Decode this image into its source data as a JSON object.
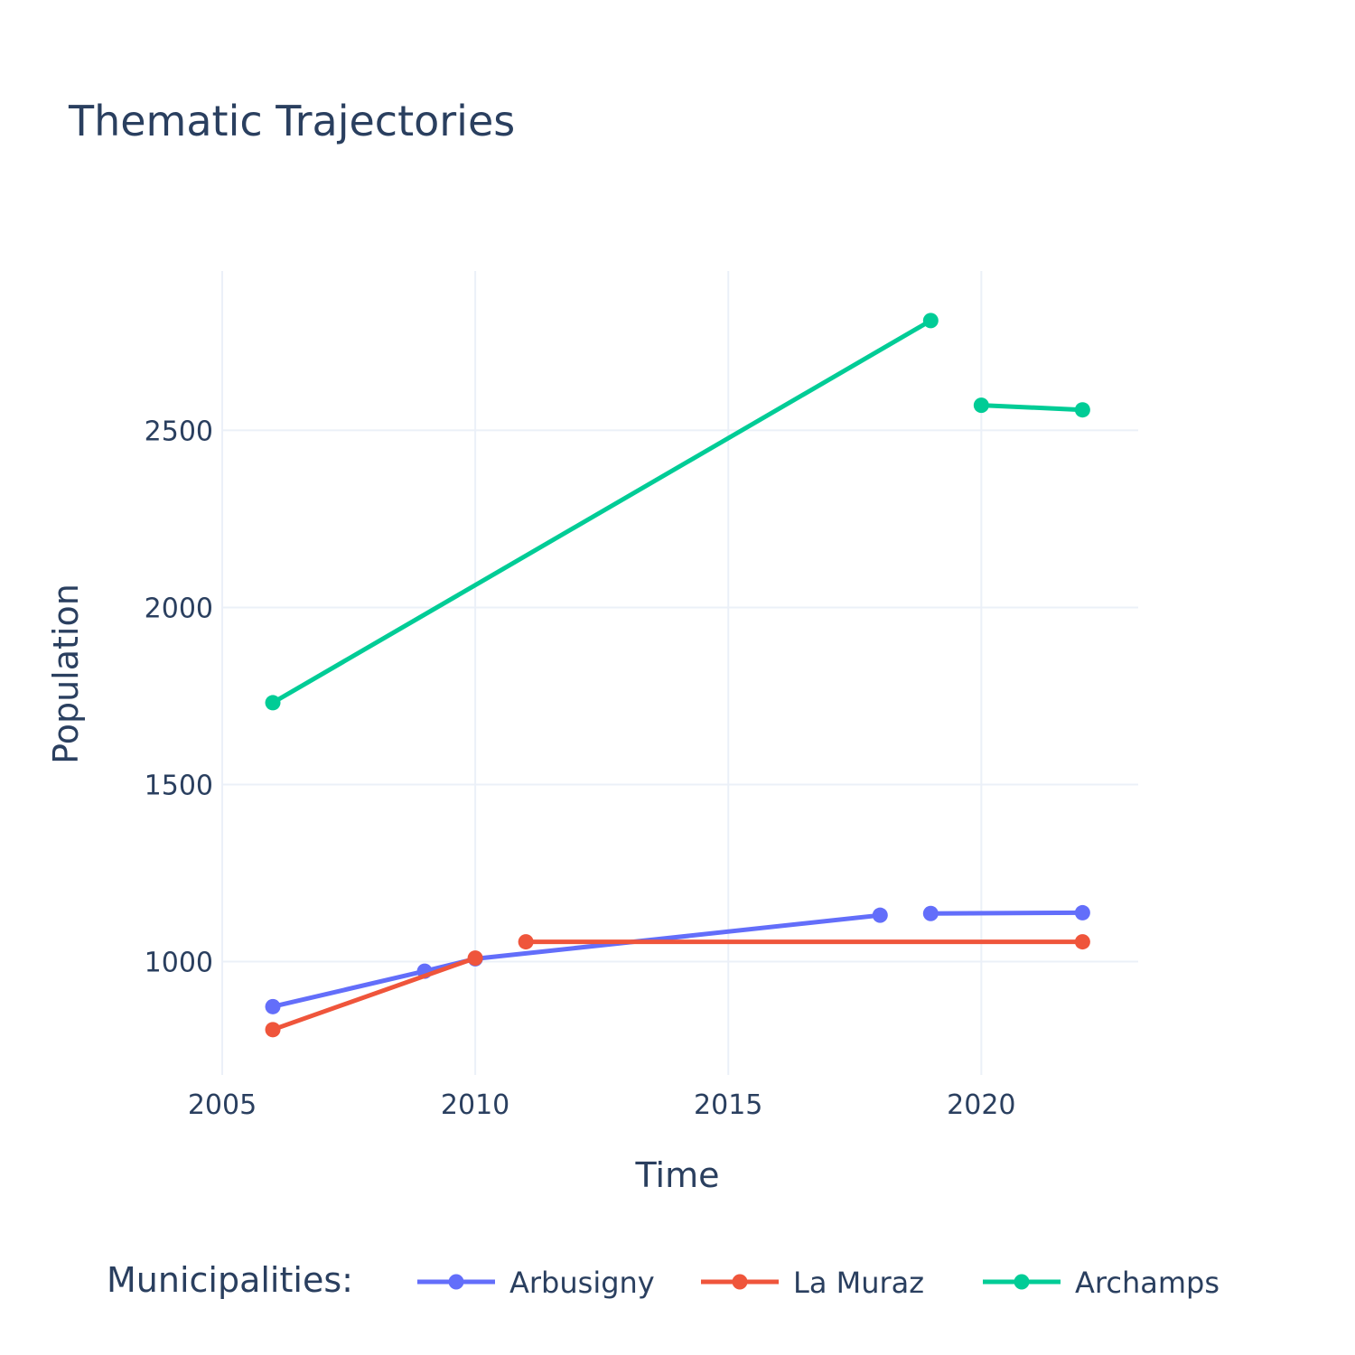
{
  "chart_data": {
    "type": "line",
    "title": "Thematic Trajectories",
    "xlabel": "Time",
    "ylabel": "Population",
    "xlim": [
      2005,
      2023.1
    ],
    "ylim": [
      680,
      2950
    ],
    "xticks": [
      2005,
      2010,
      2015,
      2020
    ],
    "yticks": [
      1000,
      1500,
      2000,
      2500
    ],
    "grid": true,
    "legend": {
      "title": "Municipalities:",
      "placement": "bottom"
    },
    "series": [
      {
        "name": "Arbusigny",
        "color": "#636efa",
        "segments": [
          [
            [
              2006,
              873
            ],
            [
              2009,
              973
            ],
            [
              2010,
              1008
            ],
            [
              2018,
              1131
            ]
          ],
          [
            [
              2019,
              1136
            ],
            [
              2022,
              1138
            ]
          ]
        ]
      },
      {
        "name": "La Muraz",
        "color": "#ef553b",
        "segments": [
          [
            [
              2006,
              808
            ],
            [
              2010,
              1010
            ]
          ],
          [
            [
              2011,
              1056
            ],
            [
              2022,
              1056
            ]
          ]
        ]
      },
      {
        "name": "Archamps",
        "color": "#00cc96",
        "segments": [
          [
            [
              2006,
              1731
            ],
            [
              2019,
              2810
            ]
          ],
          [
            [
              2020,
              2571
            ],
            [
              2022,
              2558
            ]
          ]
        ]
      }
    ]
  }
}
